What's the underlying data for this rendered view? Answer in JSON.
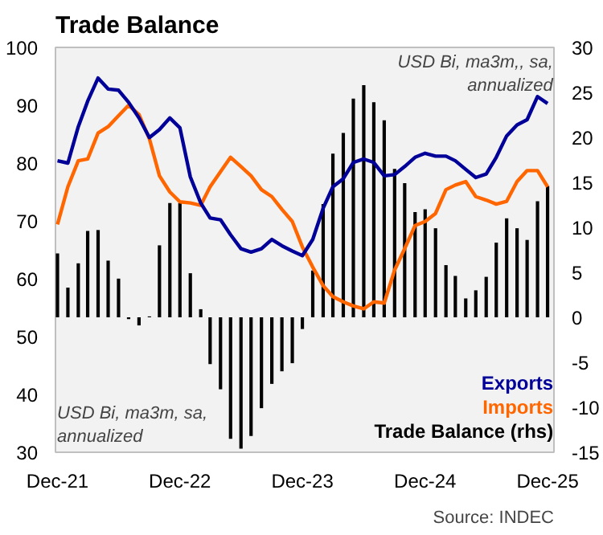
{
  "chart_data": {
    "type": "line",
    "title": "Trade Balance",
    "x": [
      "2021-12",
      "2022-01",
      "2022-02",
      "2022-03",
      "2022-04",
      "2022-05",
      "2022-06",
      "2022-07",
      "2022-08",
      "2022-09",
      "2022-10",
      "2022-11",
      "2022-12",
      "2023-01",
      "2023-02",
      "2023-03",
      "2023-04",
      "2023-05",
      "2023-06",
      "2023-07",
      "2023-08",
      "2023-09",
      "2023-10",
      "2023-11",
      "2023-12",
      "2024-01",
      "2024-02",
      "2024-03",
      "2024-04",
      "2024-05",
      "2024-06",
      "2024-07",
      "2024-08",
      "2024-09",
      "2024-10",
      "2024-11",
      "2024-12",
      "2025-01",
      "2025-02",
      "2025-03",
      "2025-04",
      "2025-05",
      "2025-06",
      "2025-07",
      "2025-08",
      "2025-09",
      "2025-10",
      "2025-11",
      "2025-12"
    ],
    "series": [
      {
        "name": "Trade Balance (rhs)",
        "type": "bar",
        "axis": "y2",
        "color": "#000000",
        "values": [
          7.1,
          3.3,
          6.0,
          9.6,
          9.7,
          6.3,
          4.3,
          -0.2,
          -0.9,
          0.1,
          8.0,
          12.7,
          12.7,
          4.9,
          0.9,
          -5.2,
          -8.0,
          -13.5,
          -14.6,
          -13.2,
          -10.1,
          -7.4,
          -6.0,
          -5.1,
          -1.3,
          5.2,
          12.6,
          18.2,
          20.5,
          24.3,
          25.8,
          23.9,
          21.9,
          16.5,
          14.9,
          11.7,
          12.0,
          9.9,
          5.8,
          4.6,
          2.1,
          3.0,
          4.5,
          8.3,
          11.0,
          9.9,
          8.6,
          12.9,
          14.6
        ]
      },
      {
        "name": "Imports",
        "color": "#ff6600",
        "values": [
          69.4,
          75.9,
          80.4,
          80.7,
          85.2,
          86.3,
          88.2,
          90.0,
          88.4,
          84.2,
          77.8,
          75.0,
          73.3,
          73.1,
          72.7,
          75.9,
          78.5,
          81.0,
          79.4,
          77.8,
          75.4,
          74.2,
          72.0,
          69.9,
          65.5,
          62.0,
          58.8,
          56.9,
          56.0,
          55.3,
          54.8,
          56.0,
          55.8,
          61.5,
          65.2,
          69.2,
          69.9,
          71.3,
          75.4,
          76.2,
          76.8,
          74.2,
          73.6,
          72.9,
          73.4,
          76.8,
          78.7,
          78.7,
          75.9
        ]
      },
      {
        "name": "Exports",
        "color": "#000099",
        "values": [
          80.4,
          80.0,
          86.3,
          90.7,
          94.7,
          92.8,
          92.6,
          90.5,
          87.8,
          84.4,
          85.8,
          87.8,
          86.1,
          77.6,
          73.1,
          70.5,
          70.2,
          67.6,
          65.2,
          64.6,
          65.2,
          66.8,
          65.7,
          64.8,
          64.0,
          66.8,
          72.2,
          75.9,
          77.3,
          80.1,
          80.7,
          80.1,
          77.8,
          78.0,
          79.4,
          81.0,
          81.7,
          81.2,
          81.2,
          80.4,
          78.9,
          77.5,
          78.1,
          81.0,
          84.7,
          86.6,
          87.5,
          91.5,
          90.3
        ]
      }
    ],
    "xlim": [
      "2021-11-25",
      "2025-12-20"
    ],
    "xticks": [
      {
        "value": "2021-12",
        "label": "Dec-21"
      },
      {
        "value": "2022-12",
        "label": "Dec-22"
      },
      {
        "value": "2023-12",
        "label": "Dec-23"
      },
      {
        "value": "2024-12",
        "label": "Dec-24"
      },
      {
        "value": "2025-12",
        "label": "Dec-25"
      }
    ],
    "ylim": [
      30,
      100
    ],
    "yticks": [
      30,
      40,
      50,
      60,
      70,
      80,
      90,
      100
    ],
    "y2lim": [
      -15,
      30
    ],
    "y2ticks": [
      -15,
      -10,
      -5,
      0,
      5,
      10,
      15,
      20,
      25,
      30
    ],
    "grid": false,
    "legend": "bottom right",
    "annotations": [
      "USD Bi, ma3m,, sa,\nannualized",
      "USD Bi, ma3m, sa,\nannualized",
      "Source: INDEC"
    ]
  }
}
